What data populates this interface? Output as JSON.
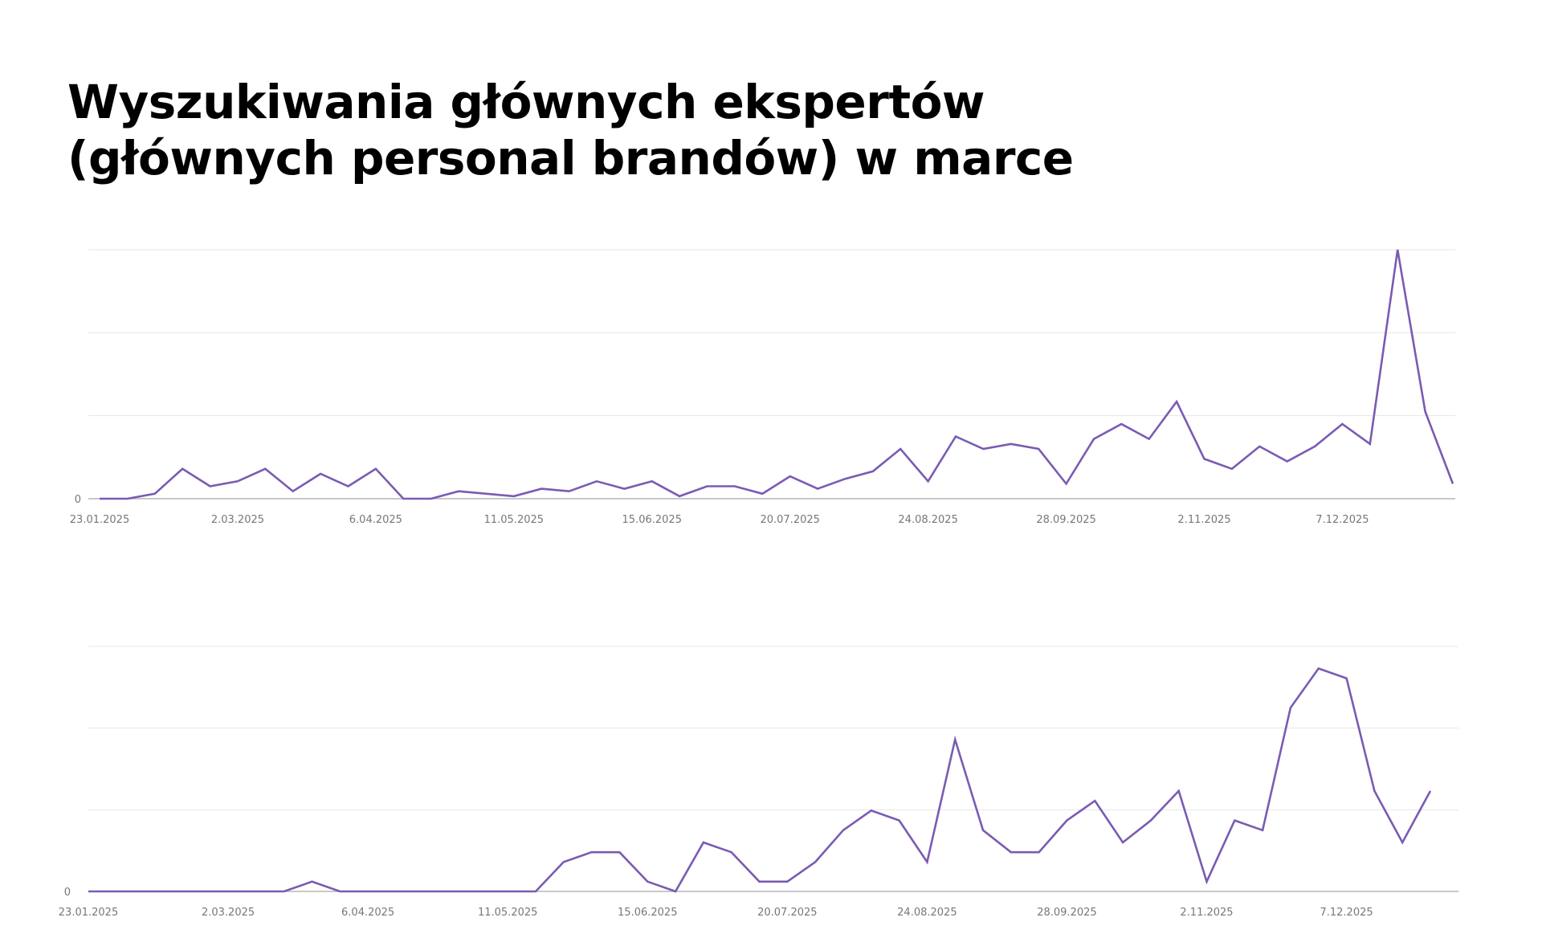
{
  "title": {
    "line1": "Wyszukiwania głównych ekspertów",
    "line2": "(głównych personal brandów) w marce"
  },
  "colors": {
    "line": "#7a5bb2",
    "grid": "#e6e6e6",
    "baseline": "#b5b5b5",
    "tick": "#777777"
  },
  "chart_data": [
    {
      "type": "line",
      "title": "",
      "xlabel": "",
      "ylabel": "",
      "grid": true,
      "ylim": [
        0,
        100
      ],
      "y_ticks": [
        0
      ],
      "y_tick_labels": [
        "0"
      ],
      "x_tick_labels": [
        "23.01.2025",
        "2.03.2025",
        "6.04.2025",
        "11.05.2025",
        "15.06.2025",
        "20.07.2025",
        "24.08.2025",
        "28.09.2025",
        "2.11.2025",
        "7.12.2025"
      ],
      "x_tick_indices": [
        0,
        5,
        10,
        15,
        20,
        25,
        30,
        35,
        40,
        45
      ],
      "series": [
        {
          "values": [
            0,
            0,
            2,
            12,
            5,
            7,
            12,
            3,
            10,
            5,
            12,
            0,
            0,
            3,
            2,
            1,
            4,
            3,
            7,
            4,
            7,
            1,
            5,
            5,
            2,
            9,
            4,
            8,
            11,
            20,
            7,
            25,
            20,
            22,
            20,
            6,
            24,
            30,
            24,
            39,
            16,
            12,
            21,
            15,
            21,
            30,
            22,
            100,
            35,
            6
          ]
        }
      ]
    },
    {
      "type": "line",
      "title": "",
      "xlabel": "",
      "ylabel": "",
      "grid": true,
      "ylim": [
        0,
        100
      ],
      "y_ticks": [
        0
      ],
      "y_tick_labels": [
        "0"
      ],
      "x_tick_labels": [
        "23.01.2025",
        "2.03.2025",
        "6.04.2025",
        "11.05.2025",
        "15.06.2025",
        "20.07.2025",
        "24.08.2025",
        "28.09.2025",
        "2.11.2025",
        "7.12.2025"
      ],
      "x_tick_indices": [
        0,
        5,
        10,
        15,
        20,
        25,
        30,
        35,
        40,
        45
      ],
      "series": [
        {
          "values": [
            0,
            0,
            0,
            0,
            0,
            0,
            0,
            0,
            4,
            0,
            0,
            0,
            0,
            0,
            0,
            0,
            0,
            12,
            16,
            16,
            4,
            0,
            20,
            16,
            4,
            4,
            12,
            25,
            33,
            29,
            12,
            62,
            25,
            16,
            16,
            29,
            37,
            20,
            29,
            41,
            4,
            29,
            25,
            75,
            91,
            87,
            41,
            20,
            41
          ]
        }
      ]
    }
  ]
}
